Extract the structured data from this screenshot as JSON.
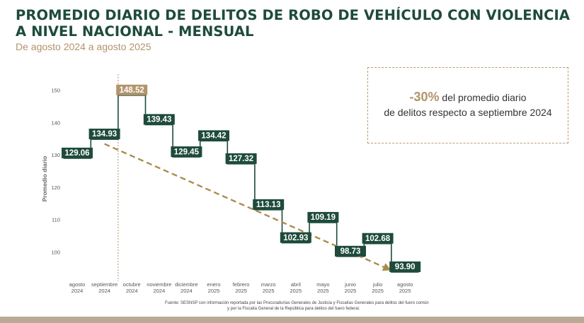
{
  "page": {
    "title_line1": "PROMEDIO DIARIO DE DELITOS DE ROBO DE VEHÍCULO CON VIOLENCIA",
    "title_line2": "A NIVEL NACIONAL - MENSUAL",
    "subtitle": "De agosto 2024 a agosto 2025",
    "callout_pct": "-30%",
    "callout_text1": " del promedio diario",
    "callout_text2": "de delitos respecto a septiembre 2024",
    "source_line1": "Fuente: SESNSP con información reportada por las Procuradurías Generales de Justicia y Fiscalías Generales para delitos del fuero común",
    "source_line2": "y por la Fiscalía General de la República para delitos del fuero federal."
  },
  "colors": {
    "primary": "#1e4b3b",
    "accent": "#b3936a",
    "trend": "#a98a4e"
  },
  "chart_data": {
    "type": "line",
    "ylabel": "Promedio diario",
    "ylim": [
      95,
      150
    ],
    "yticks": [
      100,
      110,
      120,
      130,
      140,
      150
    ],
    "grid": false,
    "categories": [
      [
        "agosto",
        "2024"
      ],
      [
        "septiembre",
        "2024"
      ],
      [
        "octubre",
        "2024"
      ],
      [
        "noviembre",
        "2024"
      ],
      [
        "diciembre",
        "2024"
      ],
      [
        "enero",
        "2025"
      ],
      [
        "febrero",
        "2025"
      ],
      [
        "marzo",
        "2025"
      ],
      [
        "abril",
        "2025"
      ],
      [
        "mayo",
        "2025"
      ],
      [
        "junio",
        "2025"
      ],
      [
        "julio",
        "2025"
      ],
      [
        "agosto",
        "2025"
      ]
    ],
    "values": [
      129.06,
      134.93,
      148.52,
      139.43,
      129.45,
      134.42,
      127.32,
      113.13,
      102.93,
      109.19,
      98.73,
      102.68,
      93.9
    ],
    "labels": [
      "129.06",
      "134.93",
      "148.52",
      "139.43",
      "129.45",
      "134.42",
      "127.32",
      "113.13",
      "102.93",
      "109.19",
      "98.73",
      "102.68",
      "93.90"
    ],
    "highlight_index": 2,
    "reference_line_index": 1,
    "trend": {
      "from_index": 1,
      "to_index": 12,
      "from_value": 133.5,
      "to_value": 94.5
    }
  }
}
